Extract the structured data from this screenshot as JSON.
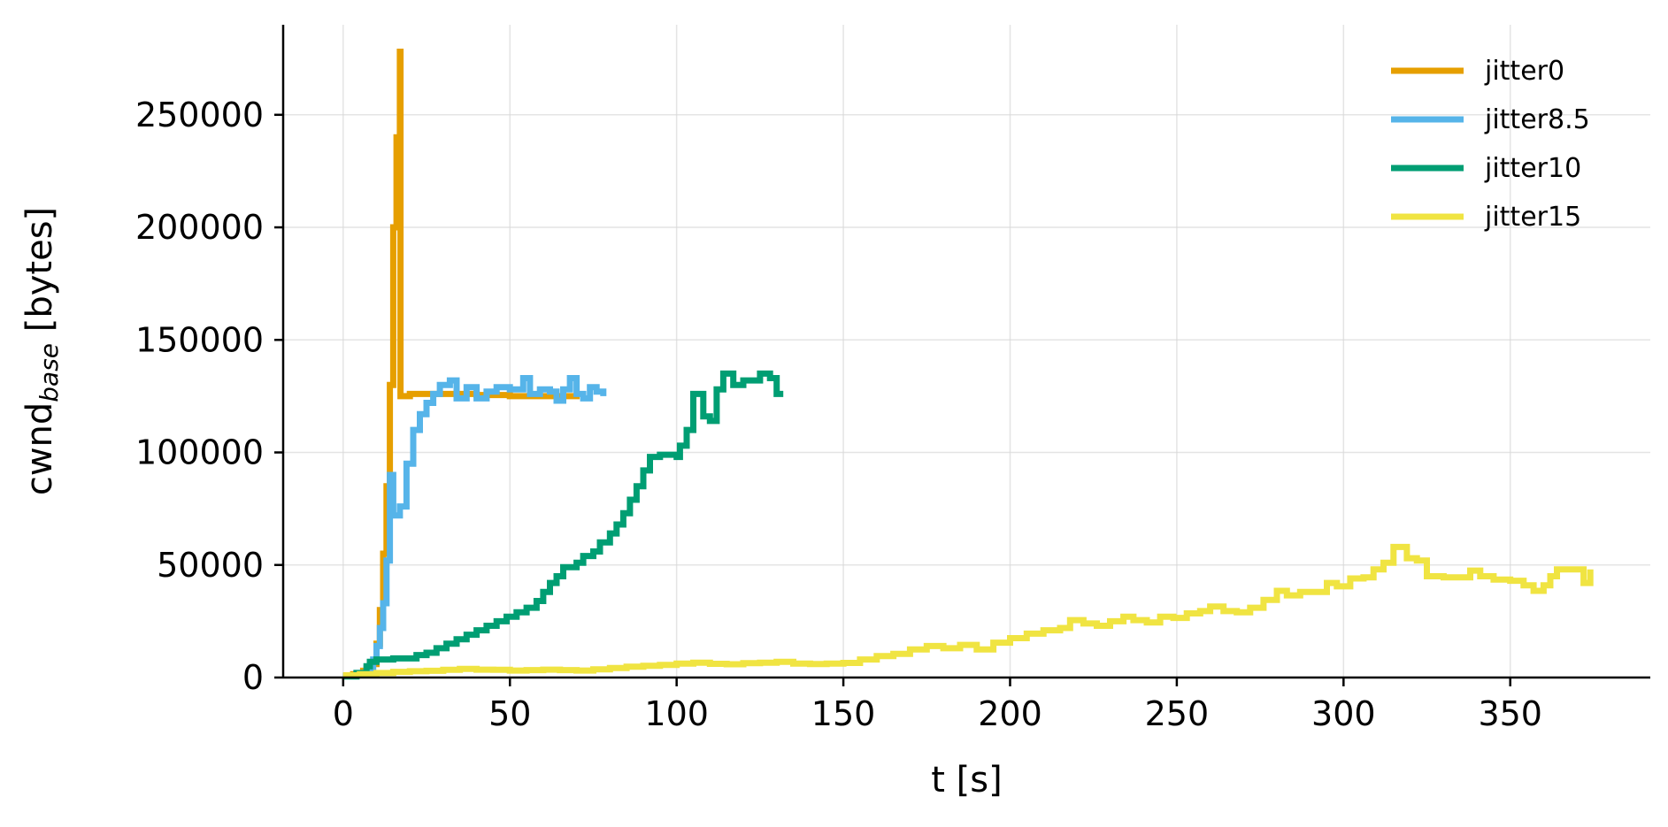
{
  "chart_data": {
    "type": "line",
    "title": "",
    "xlabel": "t [s]",
    "ylabel_main": "cwnd",
    "ylabel_sub": "base",
    "ylabel_suffix": " [bytes]",
    "xlim": [
      -18,
      392
    ],
    "ylim": [
      0,
      290000
    ],
    "xticks": [
      0,
      50,
      100,
      150,
      200,
      250,
      300,
      350
    ],
    "yticks": [
      0,
      50000,
      100000,
      150000,
      200000,
      250000
    ],
    "grid": true,
    "legend_position": "top-right",
    "series": [
      {
        "name": "jitter0",
        "color": "#E69F00",
        "step": true,
        "points": [
          [
            0,
            1000
          ],
          [
            3,
            1500
          ],
          [
            6,
            3000
          ],
          [
            8,
            6000
          ],
          [
            10,
            15000
          ],
          [
            11,
            30000
          ],
          [
            12,
            55000
          ],
          [
            13,
            85000
          ],
          [
            14,
            130000
          ],
          [
            15,
            200000
          ],
          [
            16,
            240000
          ],
          [
            17,
            278000
          ],
          [
            17.2,
            125000
          ],
          [
            20,
            126000
          ],
          [
            30,
            126000
          ],
          [
            40,
            125500
          ],
          [
            50,
            125000
          ],
          [
            60,
            125000
          ],
          [
            70,
            125500
          ]
        ]
      },
      {
        "name": "jitter8.5",
        "color": "#56B4E9",
        "step": true,
        "points": [
          [
            0,
            1000
          ],
          [
            4,
            2000
          ],
          [
            7,
            4000
          ],
          [
            9,
            8000
          ],
          [
            10,
            14000
          ],
          [
            11,
            22000
          ],
          [
            12,
            33000
          ],
          [
            13,
            52000
          ],
          [
            14,
            90000
          ],
          [
            15,
            72000
          ],
          [
            17,
            76000
          ],
          [
            19,
            95000
          ],
          [
            21,
            110000
          ],
          [
            23,
            117000
          ],
          [
            25,
            122000
          ],
          [
            27,
            126000
          ],
          [
            29,
            130000
          ],
          [
            32,
            132000
          ],
          [
            34,
            124000
          ],
          [
            37,
            129000
          ],
          [
            40,
            124000
          ],
          [
            43,
            127000
          ],
          [
            46,
            129000
          ],
          [
            50,
            128000
          ],
          [
            54,
            133000
          ],
          [
            56,
            126000
          ],
          [
            59,
            128000
          ],
          [
            62,
            127000
          ],
          [
            64,
            123000
          ],
          [
            66,
            128000
          ],
          [
            68,
            133000
          ],
          [
            70,
            126000
          ],
          [
            72,
            124000
          ],
          [
            74,
            129000
          ],
          [
            76,
            127000
          ],
          [
            78,
            125000
          ]
        ]
      },
      {
        "name": "jitter10",
        "color": "#009E73",
        "step": true,
        "points": [
          [
            0,
            500
          ],
          [
            4,
            2000
          ],
          [
            7,
            5000
          ],
          [
            8,
            7000
          ],
          [
            10,
            8000
          ],
          [
            15,
            8500
          ],
          [
            20,
            8500
          ],
          [
            22,
            10000
          ],
          [
            25,
            11000
          ],
          [
            28,
            13000
          ],
          [
            31,
            15000
          ],
          [
            34,
            17000
          ],
          [
            37,
            19000
          ],
          [
            40,
            21000
          ],
          [
            43,
            23000
          ],
          [
            46,
            25000
          ],
          [
            49,
            27000
          ],
          [
            52,
            29000
          ],
          [
            55,
            31000
          ],
          [
            58,
            34000
          ],
          [
            60,
            38000
          ],
          [
            62,
            42000
          ],
          [
            64,
            45000
          ],
          [
            66,
            49000
          ],
          [
            70,
            51000
          ],
          [
            72,
            54000
          ],
          [
            75,
            56000
          ],
          [
            77,
            60000
          ],
          [
            80,
            64000
          ],
          [
            82,
            68000
          ],
          [
            84,
            73000
          ],
          [
            86,
            79000
          ],
          [
            88,
            85000
          ],
          [
            90,
            92000
          ],
          [
            92,
            98000
          ],
          [
            95,
            99000
          ],
          [
            100,
            98000
          ],
          [
            101,
            103000
          ],
          [
            103,
            110000
          ],
          [
            105,
            126000
          ],
          [
            108,
            116000
          ],
          [
            110,
            114000
          ],
          [
            112,
            128000
          ],
          [
            114,
            135000
          ],
          [
            117,
            130000
          ],
          [
            120,
            132000
          ],
          [
            123,
            132000
          ],
          [
            125,
            135000
          ],
          [
            128,
            133000
          ],
          [
            130,
            126000
          ],
          [
            132,
            126000
          ]
        ]
      },
      {
        "name": "jitter15",
        "color": "#F0E442",
        "step": true,
        "points": [
          [
            0,
            1000
          ],
          [
            5,
            1500
          ],
          [
            10,
            2000
          ],
          [
            15,
            2500
          ],
          [
            20,
            2800
          ],
          [
            25,
            3000
          ],
          [
            30,
            3400
          ],
          [
            35,
            3800
          ],
          [
            40,
            3500
          ],
          [
            45,
            3400
          ],
          [
            50,
            3100
          ],
          [
            55,
            3300
          ],
          [
            60,
            3500
          ],
          [
            65,
            3300
          ],
          [
            70,
            3100
          ],
          [
            75,
            3600
          ],
          [
            80,
            4200
          ],
          [
            85,
            4800
          ],
          [
            90,
            5200
          ],
          [
            95,
            5600
          ],
          [
            100,
            6200
          ],
          [
            105,
            6600
          ],
          [
            110,
            6100
          ],
          [
            115,
            5900
          ],
          [
            120,
            6400
          ],
          [
            125,
            6600
          ],
          [
            130,
            7000
          ],
          [
            135,
            6200
          ],
          [
            140,
            6000
          ],
          [
            145,
            6200
          ],
          [
            150,
            6500
          ],
          [
            155,
            8000
          ],
          [
            160,
            9500
          ],
          [
            165,
            10500
          ],
          [
            170,
            12500
          ],
          [
            175,
            14000
          ],
          [
            180,
            13000
          ],
          [
            185,
            14500
          ],
          [
            190,
            12500
          ],
          [
            195,
            15500
          ],
          [
            200,
            17500
          ],
          [
            205,
            19500
          ],
          [
            210,
            21000
          ],
          [
            215,
            22000
          ],
          [
            218,
            25500
          ],
          [
            222,
            24000
          ],
          [
            226,
            23000
          ],
          [
            230,
            25000
          ],
          [
            234,
            27000
          ],
          [
            237,
            25500
          ],
          [
            241,
            24500
          ],
          [
            245,
            27000
          ],
          [
            249,
            26500
          ],
          [
            253,
            28500
          ],
          [
            257,
            29500
          ],
          [
            260,
            31500
          ],
          [
            264,
            29500
          ],
          [
            268,
            29000
          ],
          [
            272,
            31000
          ],
          [
            276,
            34500
          ],
          [
            280,
            38500
          ],
          [
            283,
            36500
          ],
          [
            287,
            38000
          ],
          [
            291,
            38000
          ],
          [
            295,
            42000
          ],
          [
            298,
            40500
          ],
          [
            302,
            44000
          ],
          [
            306,
            44500
          ],
          [
            309,
            48000
          ],
          [
            312,
            51000
          ],
          [
            315,
            58000
          ],
          [
            319,
            53000
          ],
          [
            322,
            52000
          ],
          [
            325,
            45000
          ],
          [
            330,
            44500
          ],
          [
            335,
            44500
          ],
          [
            338,
            47500
          ],
          [
            341,
            45000
          ],
          [
            345,
            43500
          ],
          [
            350,
            43000
          ],
          [
            354,
            41000
          ],
          [
            357,
            38500
          ],
          [
            360,
            41000
          ],
          [
            362,
            45000
          ],
          [
            364,
            48000
          ],
          [
            368,
            48000
          ],
          [
            372,
            42000
          ],
          [
            374,
            48000
          ]
        ]
      }
    ]
  }
}
